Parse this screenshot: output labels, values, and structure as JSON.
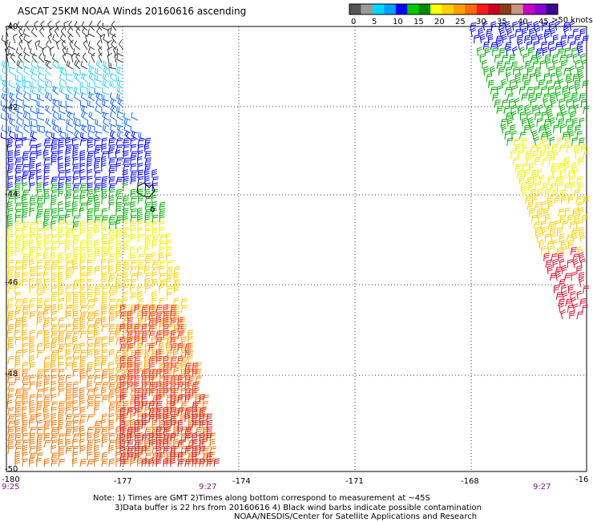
{
  "title": "ASCAT 25KM NOAA Winds 20160616 ascending",
  "legend": {
    "unit_label": ">50 knots",
    "tick_labels": [
      "0",
      "5",
      "10",
      "15",
      "20",
      "25",
      "30",
      "35",
      "40",
      "45"
    ],
    "colors": [
      "#555555",
      "#9a9a9a",
      "#00d8ff",
      "#00a0ff",
      "#0000ff",
      "#00c800",
      "#008c00",
      "#ffff00",
      "#ffd000",
      "#ffa000",
      "#ff6a00",
      "#ff1a1a",
      "#c8001e",
      "#8c3c14",
      "#c89680",
      "#c800c8",
      "#8a00d0",
      "#3c0096"
    ]
  },
  "map": {
    "lat_labels": [
      "-40",
      "-42",
      "-44",
      "-46",
      "-48",
      "-50"
    ],
    "lon_labels": [
      "-180",
      "-177",
      "-174",
      "-171",
      "-168",
      "-16"
    ],
    "time_labels": [
      "9:25",
      "9:27",
      "9:27"
    ]
  },
  "notes": {
    "line1": "Note: 1) Times are GMT 2)Times along bottom correspond to measurement at ~45S",
    "line2": "3)Data buffer is 22 hrs from 20160616 4) Black wind barbs indicate possible contamination",
    "line3": "NOAA/NESDIS/Center for Satellite Applications and Research"
  }
}
